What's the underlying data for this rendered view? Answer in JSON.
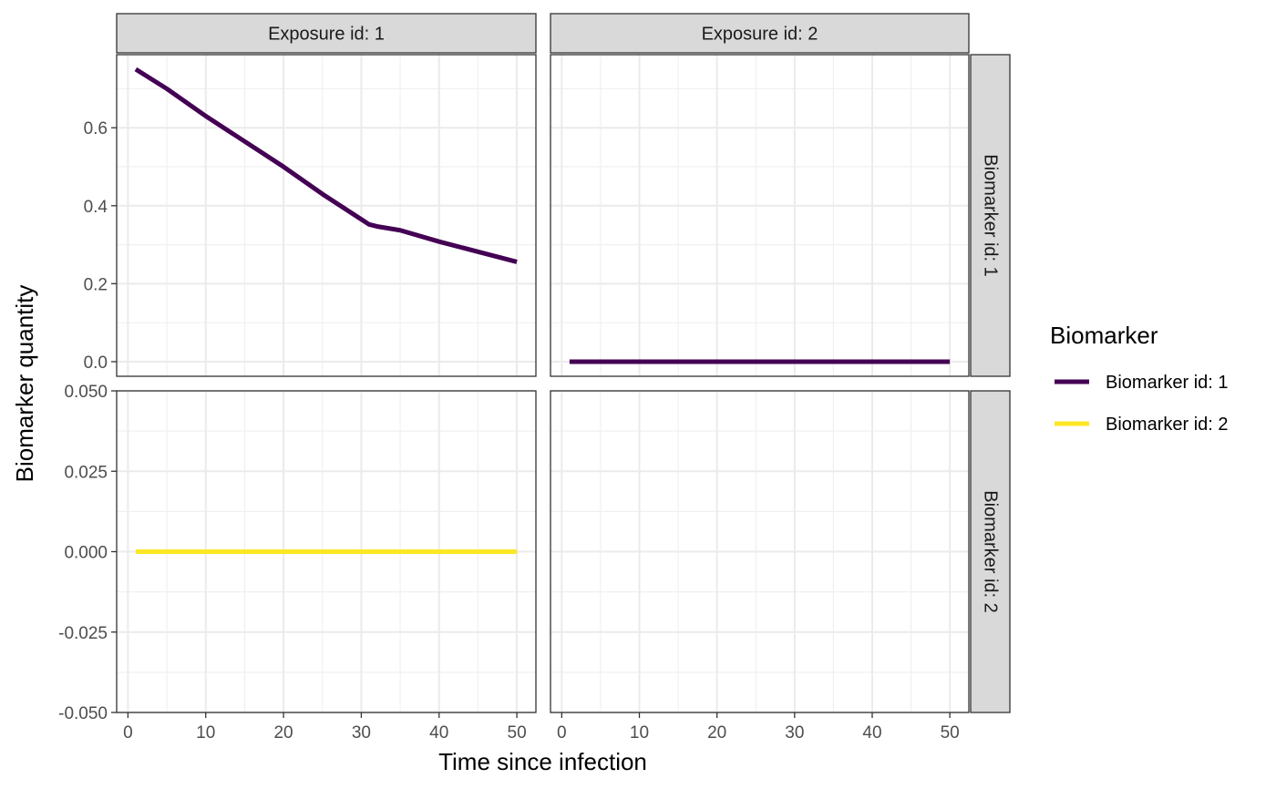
{
  "chart_data": {
    "type": "line",
    "xlabel": "Time since infection",
    "ylabel": "Biomarker quantity",
    "x_ticks": [
      0,
      10,
      20,
      30,
      40,
      50
    ],
    "xlim": [
      -1.45,
      52.45
    ],
    "grid": true,
    "facet_columns": [
      "Exposure id: 1",
      "Exposure id: 2"
    ],
    "facet_rows": [
      "Biomarker id: 1",
      "Biomarker id: 2"
    ],
    "row_scales": [
      {
        "ylim": [
          -0.0375,
          0.7875
        ],
        "ticks": [
          0.0,
          0.2,
          0.4,
          0.6
        ],
        "tick_labels": [
          "0.0",
          "0.2",
          "0.4",
          "0.6"
        ]
      },
      {
        "ylim": [
          -0.05,
          0.05
        ],
        "ticks": [
          -0.05,
          -0.025,
          0,
          0.025,
          0.05
        ],
        "tick_labels": [
          "-0.050",
          "-0.025",
          "0.000",
          "0.025",
          "0.050"
        ]
      }
    ],
    "legend": {
      "title": "Biomarker",
      "position": "right",
      "items": [
        {
          "label": "Biomarker id: 1",
          "color": "#440154"
        },
        {
          "label": "Biomarker id: 2",
          "color": "#FDE725"
        }
      ]
    },
    "panels": [
      {
        "row": 0,
        "col": 0,
        "series": [
          {
            "biomarker": 0,
            "color": "#440154",
            "x": [
              1,
              5,
              10,
              15,
              20,
              25,
              30,
              31,
              32,
              35,
              40,
              45,
              50
            ],
            "y": [
              0.75,
              0.7,
              0.63,
              0.565,
              0.5,
              0.43,
              0.365,
              0.352,
              0.347,
              0.337,
              0.308,
              0.282,
              0.256
            ]
          }
        ]
      },
      {
        "row": 0,
        "col": 1,
        "series": [
          {
            "biomarker": 0,
            "color": "#440154",
            "x": [
              1,
              50
            ],
            "y": [
              0,
              0
            ]
          }
        ]
      },
      {
        "row": 1,
        "col": 0,
        "series": [
          {
            "biomarker": 1,
            "color": "#FDE725",
            "x": [
              1,
              50
            ],
            "y": [
              0,
              0
            ]
          }
        ]
      },
      {
        "row": 1,
        "col": 1,
        "series": []
      }
    ]
  }
}
